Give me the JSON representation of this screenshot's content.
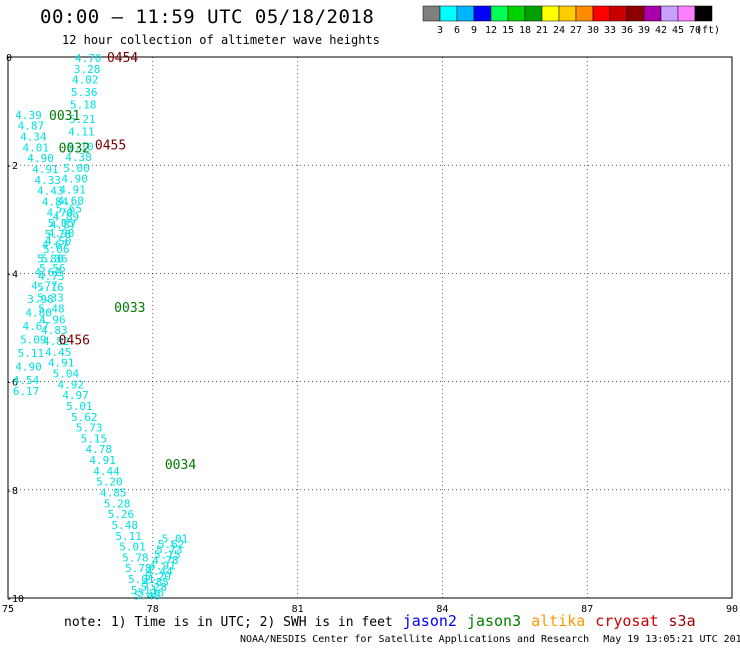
{
  "header": {
    "title": "00:00 – 11:59 UTC 05/18/2018",
    "subtitle": "12 hour collection of altimeter wave heights"
  },
  "colorbar": {
    "unit": "(ft)",
    "bins": [
      {
        "label": "3",
        "color": "#7f7f7f"
      },
      {
        "label": "6",
        "color": "#00ffff"
      },
      {
        "label": "9",
        "color": "#00b4ff"
      },
      {
        "label": "12",
        "color": "#0000ff"
      },
      {
        "label": "15",
        "color": "#00ff55"
      },
      {
        "label": "18",
        "color": "#00d200"
      },
      {
        "label": "21",
        "color": "#00a000"
      },
      {
        "label": "24",
        "color": "#ffff00"
      },
      {
        "label": "27",
        "color": "#ffcc00"
      },
      {
        "label": "30",
        "color": "#ff8c00"
      },
      {
        "label": "33",
        "color": "#ff0000"
      },
      {
        "label": "36",
        "color": "#c80000"
      },
      {
        "label": "39",
        "color": "#8b0000"
      },
      {
        "label": "42",
        "color": "#aa00aa"
      },
      {
        "label": "45",
        "color": "#c8a0ff"
      },
      {
        "label": "70",
        "color": "#ff80ff"
      },
      {
        "label": "",
        "color": "#000000"
      }
    ]
  },
  "note": {
    "text": "note: 1) Time is in UTC; 2) SWH is in feet",
    "missions": [
      {
        "label": "jason2",
        "color": "#0000ff"
      },
      {
        "label": "jason3",
        "color": "#008000"
      },
      {
        "label": "altika",
        "color": "#ff9900"
      },
      {
        "label": "cryosat",
        "color": "#cc0000"
      },
      {
        "label": "s3a",
        "color": "#990000"
      }
    ]
  },
  "footer": {
    "center": "NOAA/NESDIS Center for Satellite Applications and Research",
    "date": "May 19 13:05:21 UTC 2018"
  },
  "chart_data": {
    "type": "scatter",
    "xlim": [
      75,
      90
    ],
    "ylim": [
      -10,
      0
    ],
    "xticks": [
      "75",
      "78",
      "81",
      "84",
      "87",
      "90"
    ],
    "yticks": [
      "0",
      "-2",
      "-4",
      "-6",
      "-8",
      "-10"
    ],
    "grid": true,
    "point_color": "#00e0e0",
    "series": [
      {
        "x": [
          76.66,
          76.64,
          76.6,
          76.58,
          76.56,
          76.54,
          76.52,
          76.5,
          76.46,
          76.42,
          76.38,
          76.34,
          76.3,
          76.26,
          76.2,
          76.14,
          76.1,
          76.04,
          76.0,
          75.96,
          75.92,
          75.9,
          75.88,
          75.88,
          75.9,
          75.92,
          75.96,
          76.0,
          76.04,
          76.1,
          76.2,
          76.3,
          76.4,
          76.48,
          76.58,
          76.68,
          76.78,
          76.88,
          76.96,
          77.04,
          77.1,
          77.18,
          77.26,
          77.34,
          77.42,
          77.5,
          77.58,
          77.64,
          77.7,
          77.76,
          77.82,
          77.88,
          77.96,
          78.02,
          78.06,
          78.1,
          78.14,
          78.2,
          78.26,
          78.3,
          78.34,
          78.38,
          78.46
        ],
        "y": [
          -0.02,
          -0.22,
          -0.42,
          -0.65,
          -0.88,
          -1.15,
          -1.38,
          -1.65,
          -1.85,
          -2.05,
          -2.25,
          -2.45,
          -2.65,
          -2.8,
          -2.95,
          -3.1,
          -3.25,
          -3.4,
          -3.55,
          -3.72,
          -3.9,
          -4.05,
          -4.25,
          -4.45,
          -4.65,
          -4.85,
          -5.05,
          -5.25,
          -5.45,
          -5.65,
          -5.85,
          -6.05,
          -6.25,
          -6.45,
          -6.65,
          -6.85,
          -7.05,
          -7.25,
          -7.45,
          -7.65,
          -7.85,
          -8.05,
          -8.25,
          -8.45,
          -8.65,
          -8.85,
          -9.05,
          -9.25,
          -9.45,
          -9.65,
          -9.85,
          -9.95,
          -9.9,
          -9.8,
          -9.7,
          -9.6,
          -9.5,
          -9.4,
          -9.3,
          -9.2,
          -9.1,
          -9.0,
          -8.9
        ],
        "labels": [
          "4.70",
          "3.28",
          "4.02",
          "5.36",
          "5.18",
          "5.21",
          "4.11",
          "5.10",
          "4.38",
          "5.00",
          "4.90",
          "4.91",
          "4.60",
          "5.65",
          "4.89",
          "4.87",
          "4.90",
          "4.50",
          "5.06",
          "5.36",
          "5.56",
          "4.73",
          "5.16",
          "5.33",
          "5.48",
          "4.96",
          "4.83",
          "4.82",
          "4.45",
          "4.91",
          "5.04",
          "4.92",
          "4.97",
          "5.01",
          "5.62",
          "5.73",
          "5.15",
          "4.78",
          "4.91",
          "4.44",
          "5.20",
          "4.85",
          "5.28",
          "5.26",
          "5.48",
          "5.11",
          "5.01",
          "5.78",
          "5.78",
          "5.01",
          "5.11",
          "5.48",
          "5.26",
          "5.28",
          "4.85",
          "5.20",
          "4.44",
          "4.91",
          "4.78",
          "5.15",
          "5.73",
          "5.62",
          "5.01"
        ]
      }
    ],
    "labels_left": [
      {
        "x": 75.15,
        "y": -1.07,
        "text": "4.39"
      },
      {
        "x": 75.2,
        "y": -1.27,
        "text": "4.87"
      },
      {
        "x": 75.25,
        "y": -1.47,
        "text": "4.34"
      },
      {
        "x": 75.3,
        "y": -1.67,
        "text": "4.01"
      },
      {
        "x": 75.4,
        "y": -1.87,
        "text": "4.90"
      },
      {
        "x": 75.5,
        "y": -2.07,
        "text": "4.91"
      },
      {
        "x": 75.55,
        "y": -2.27,
        "text": "4.33"
      },
      {
        "x": 75.6,
        "y": -2.47,
        "text": "4.43"
      },
      {
        "x": 75.7,
        "y": -2.67,
        "text": "4.84"
      },
      {
        "x": 75.8,
        "y": -2.87,
        "text": "4.70"
      },
      {
        "x": 75.82,
        "y": -3.07,
        "text": "5.05"
      },
      {
        "x": 75.76,
        "y": -3.27,
        "text": "5.70"
      },
      {
        "x": 75.7,
        "y": -3.47,
        "text": "4.67"
      },
      {
        "x": 75.6,
        "y": -3.72,
        "text": "5.80"
      },
      {
        "x": 75.55,
        "y": -3.97,
        "text": "4.62"
      },
      {
        "x": 75.48,
        "y": -4.22,
        "text": "4.77"
      },
      {
        "x": 75.4,
        "y": -4.47,
        "text": "3.98"
      },
      {
        "x": 75.36,
        "y": -4.72,
        "text": "4.80"
      },
      {
        "x": 75.3,
        "y": -4.97,
        "text": "4.67"
      },
      {
        "x": 75.25,
        "y": -5.22,
        "text": "5.09"
      },
      {
        "x": 75.2,
        "y": -5.47,
        "text": "5.11"
      },
      {
        "x": 75.15,
        "y": -5.72,
        "text": "4.90"
      },
      {
        "x": 75.1,
        "y": -5.97,
        "text": "4.54"
      },
      {
        "x": 75.1,
        "y": -6.17,
        "text": "6.17"
      }
    ],
    "time_labels": [
      {
        "x": 77.05,
        "y": 0.0,
        "text": "0454",
        "color": "#7a0000"
      },
      {
        "x": 75.85,
        "y": -1.07,
        "text": "0031",
        "color": "#007a00"
      },
      {
        "x": 76.05,
        "y": -1.67,
        "text": "0032",
        "color": "#007a00"
      },
      {
        "x": 76.8,
        "y": -1.62,
        "text": "0455",
        "color": "#7a0000"
      },
      {
        "x": 77.2,
        "y": -4.62,
        "text": "0033",
        "color": "#007a00"
      },
      {
        "x": 76.05,
        "y": -5.22,
        "text": "0456",
        "color": "#7a0000"
      },
      {
        "x": 78.25,
        "y": -7.52,
        "text": "0034",
        "color": "#007a00"
      }
    ]
  }
}
